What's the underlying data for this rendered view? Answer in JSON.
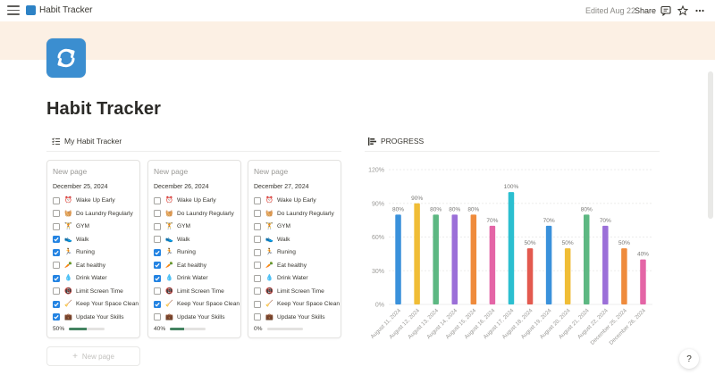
{
  "topbar": {
    "title": "Habit Tracker",
    "edited": "Edited Aug 22",
    "share": "Share",
    "icons": [
      "menu-icon",
      "comment-icon",
      "star-icon",
      "more-icon"
    ]
  },
  "page": {
    "title": "Habit Tracker",
    "icon": "repeat-icon",
    "cover_color": "#fcf0e4",
    "icon_color": "#3b8ed0"
  },
  "tracker": {
    "heading": "My Habit Tracker",
    "new_page_label": "New page",
    "cards": [
      {
        "title": "New page",
        "date": "December 25, 2024",
        "progress_label": "50%",
        "progress": 0.5,
        "habits": [
          {
            "emoji": "⏰",
            "label": "Wake Up Early",
            "checked": false
          },
          {
            "emoji": "🧺",
            "label": "Do Laundry Regularly",
            "checked": false
          },
          {
            "emoji": "🏋",
            "label": "GYM",
            "checked": false
          },
          {
            "emoji": "👟",
            "label": "Walk",
            "checked": true
          },
          {
            "emoji": "🏃",
            "label": "Runing",
            "checked": true
          },
          {
            "emoji": "🥕",
            "label": "Eat healthy",
            "checked": false
          },
          {
            "emoji": "💧",
            "label": "Drink Water",
            "checked": true
          },
          {
            "emoji": "📵",
            "label": "Limit Screen Time",
            "checked": false
          },
          {
            "emoji": "🧹",
            "label": "Keep Your Space Clean",
            "checked": true
          },
          {
            "emoji": "💼",
            "label": "Update Your Skills",
            "checked": true
          }
        ]
      },
      {
        "title": "New page",
        "date": "December 26, 2024",
        "progress_label": "40%",
        "progress": 0.4,
        "habits": [
          {
            "emoji": "⏰",
            "label": "Wake Up Early",
            "checked": false
          },
          {
            "emoji": "🧺",
            "label": "Do Laundry Regularly",
            "checked": false
          },
          {
            "emoji": "🏋",
            "label": "GYM",
            "checked": false
          },
          {
            "emoji": "👟",
            "label": "Walk",
            "checked": false
          },
          {
            "emoji": "🏃",
            "label": "Runing",
            "checked": true
          },
          {
            "emoji": "🥕",
            "label": "Eat healthy",
            "checked": true
          },
          {
            "emoji": "💧",
            "label": "Drink Water",
            "checked": true
          },
          {
            "emoji": "📵",
            "label": "Limit Screen Time",
            "checked": false
          },
          {
            "emoji": "🧹",
            "label": "Keep Your Space Clean",
            "checked": true
          },
          {
            "emoji": "💼",
            "label": "Update Your Skills",
            "checked": false
          }
        ]
      },
      {
        "title": "New page",
        "date": "December 27, 2024",
        "progress_label": "0%",
        "progress": 0,
        "habits": [
          {
            "emoji": "⏰",
            "label": "Wake Up Early",
            "checked": false
          },
          {
            "emoji": "🧺",
            "label": "Do Laundry Regularly",
            "checked": false
          },
          {
            "emoji": "🏋",
            "label": "GYM",
            "checked": false
          },
          {
            "emoji": "👟",
            "label": "Walk",
            "checked": false
          },
          {
            "emoji": "🏃",
            "label": "Runing",
            "checked": false
          },
          {
            "emoji": "🥕",
            "label": "Eat healthy",
            "checked": false
          },
          {
            "emoji": "💧",
            "label": "Drink Water",
            "checked": false
          },
          {
            "emoji": "📵",
            "label": "Limit Screen Time",
            "checked": false
          },
          {
            "emoji": "🧹",
            "label": "Keep Your Space Clean",
            "checked": false
          },
          {
            "emoji": "💼",
            "label": "Update Your Skills",
            "checked": false
          }
        ]
      }
    ]
  },
  "progress_section": {
    "heading": "PROGRESS"
  },
  "chart_data": {
    "type": "bar",
    "title": "",
    "xlabel": "",
    "ylabel": "",
    "ylim": [
      0,
      120
    ],
    "yticks": [
      "0%",
      "30%",
      "60%",
      "90%",
      "120%"
    ],
    "grid": true,
    "categories": [
      "August 11, 2024",
      "August 12, 2024",
      "August 13, 2024",
      "August 14, 2024",
      "August 15, 2024",
      "August 16, 2024",
      "August 17, 2024",
      "August 18, 2024",
      "August 19, 2024",
      "August 20, 2024",
      "August 21, 2024",
      "August 22, 2024",
      "December 25, 2024",
      "December 26, 2024"
    ],
    "values": [
      80,
      90,
      80,
      80,
      80,
      70,
      100,
      50,
      70,
      50,
      80,
      70,
      50,
      40
    ],
    "value_labels": [
      "80%",
      "90%",
      "80%",
      "80%",
      "80%",
      "70%",
      "100%",
      "50%",
      "70%",
      "50%",
      "80%",
      "70%",
      "50%",
      "40%"
    ],
    "colors": [
      "#3a91db",
      "#f0bd36",
      "#5db882",
      "#9b6fd8",
      "#ef8b3c",
      "#e465a6",
      "#2bbfd0",
      "#e35a4f",
      "#3a91db",
      "#f0bd36",
      "#5db882",
      "#9b6fd8",
      "#ef8b3c",
      "#e465a6"
    ]
  }
}
